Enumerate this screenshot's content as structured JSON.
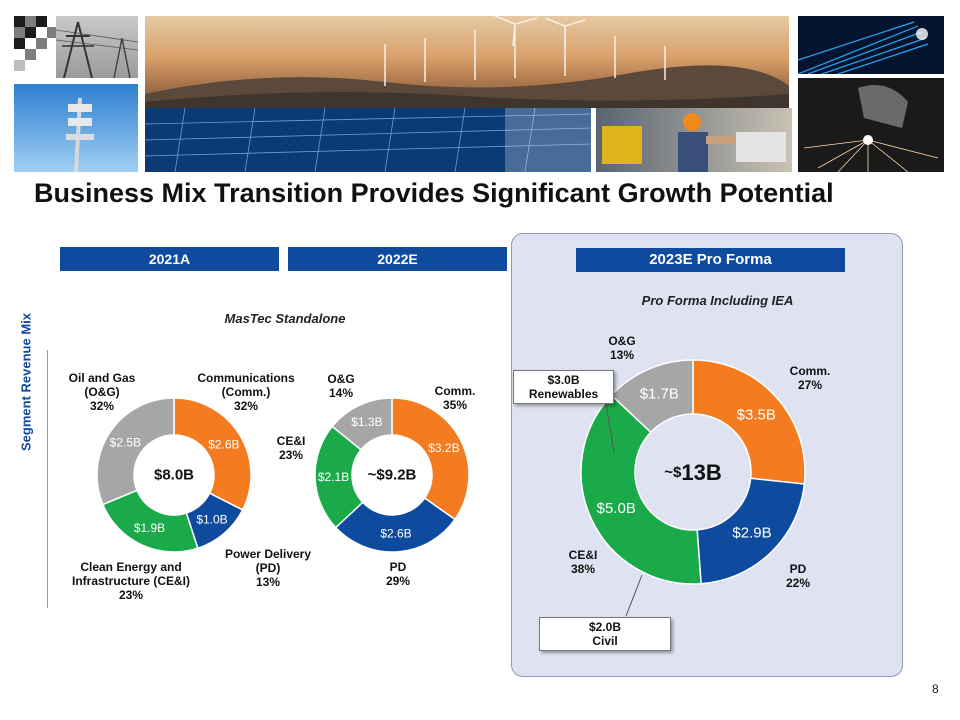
{
  "title": "Business Mix Transition Provides Significant Growth Potential",
  "colors": {
    "comm": "#f47b20",
    "pd": "#0e4a9e",
    "cei": "#1aaa4a",
    "og": "#a6a6a6",
    "header": "#0e4a9e"
  },
  "headers": {
    "y2021": "2021A",
    "y2022": "2022E",
    "y2023": "2023E Pro Forma"
  },
  "subtitles": {
    "standalone": "MasTec Standalone",
    "proforma": "Pro Forma Including IEA"
  },
  "side_label": "Segment Revenue Mix",
  "page_number": "8",
  "images": [
    "logo-blocks",
    "power-lines",
    "wind-turbines",
    "fiber-optic",
    "cell-tower",
    "solar-panels",
    "construction-worker",
    "welding"
  ],
  "chart_data": [
    {
      "type": "pie",
      "subtype": "donut",
      "title": "2021A",
      "center_label": "$8.0B",
      "slices": [
        {
          "name": "Communications (Comm.)",
          "value": 2.6,
          "value_label": "$2.6B",
          "pct": 32,
          "color": "#f47b20"
        },
        {
          "name": "Power Delivery (PD)",
          "value": 1.0,
          "value_label": "$1.0B",
          "pct": 13,
          "color": "#0e4a9e"
        },
        {
          "name": "Clean Energy and Infrastructure (CE&I)",
          "value": 1.9,
          "value_label": "$1.9B",
          "pct": 23,
          "color": "#1aaa4a"
        },
        {
          "name": "Oil and Gas (O&G)",
          "value": 2.5,
          "value_label": "$2.5B",
          "pct": 32,
          "color": "#a6a6a6"
        }
      ],
      "outer_labels": {
        "comm": [
          "Communications",
          "(Comm.)",
          "32%"
        ],
        "pd": [
          "Power Delivery",
          "(PD)",
          "13%"
        ],
        "cei": [
          "Clean Energy and",
          "Infrastructure (CE&I)",
          "23%"
        ],
        "og": [
          "Oil and Gas",
          "(O&G)",
          "32%"
        ]
      }
    },
    {
      "type": "pie",
      "subtype": "donut",
      "title": "2022E",
      "center_label": "~$9.2B",
      "slices": [
        {
          "name": "Comm.",
          "value": 3.2,
          "value_label": "$3.2B",
          "pct": 35,
          "color": "#f47b20"
        },
        {
          "name": "PD",
          "value": 2.6,
          "value_label": "$2.6B",
          "pct": 29,
          "color": "#0e4a9e"
        },
        {
          "name": "CE&I",
          "value": 2.1,
          "value_label": "$2.1B",
          "pct": 23,
          "color": "#1aaa4a"
        },
        {
          "name": "O&G",
          "value": 1.3,
          "value_label": "$1.3B",
          "pct": 14,
          "color": "#a6a6a6"
        }
      ],
      "outer_labels": {
        "comm": [
          "Comm.",
          "35%"
        ],
        "pd": [
          "PD",
          "29%"
        ],
        "cei": [
          "CE&I",
          "23%"
        ],
        "og": [
          "O&G",
          "14%"
        ]
      }
    },
    {
      "type": "pie",
      "subtype": "donut",
      "title": "2023E Pro Forma",
      "center_prefix": "~$",
      "center_value": "13B",
      "slices": [
        {
          "name": "Comm.",
          "value": 3.5,
          "value_label": "$3.5B",
          "pct": 27,
          "color": "#f47b20"
        },
        {
          "name": "PD",
          "value": 2.9,
          "value_label": "$2.9B",
          "pct": 22,
          "color": "#0e4a9e"
        },
        {
          "name": "CE&I",
          "value": 5.0,
          "value_label": "$5.0B",
          "pct": 38,
          "color": "#1aaa4a"
        },
        {
          "name": "O&G",
          "value": 1.7,
          "value_label": "$1.7B",
          "pct": 13,
          "color": "#a6a6a6"
        }
      ],
      "outer_labels": {
        "comm": [
          "Comm.",
          "27%"
        ],
        "pd": [
          "PD",
          "22%"
        ],
        "cei": [
          "CE&I",
          "38%"
        ],
        "og": [
          "O&G",
          "13%"
        ]
      },
      "callouts": {
        "renewables": [
          "$3.0B",
          "Renewables"
        ],
        "civil": [
          "$2.0B",
          "Civil"
        ]
      }
    }
  ]
}
